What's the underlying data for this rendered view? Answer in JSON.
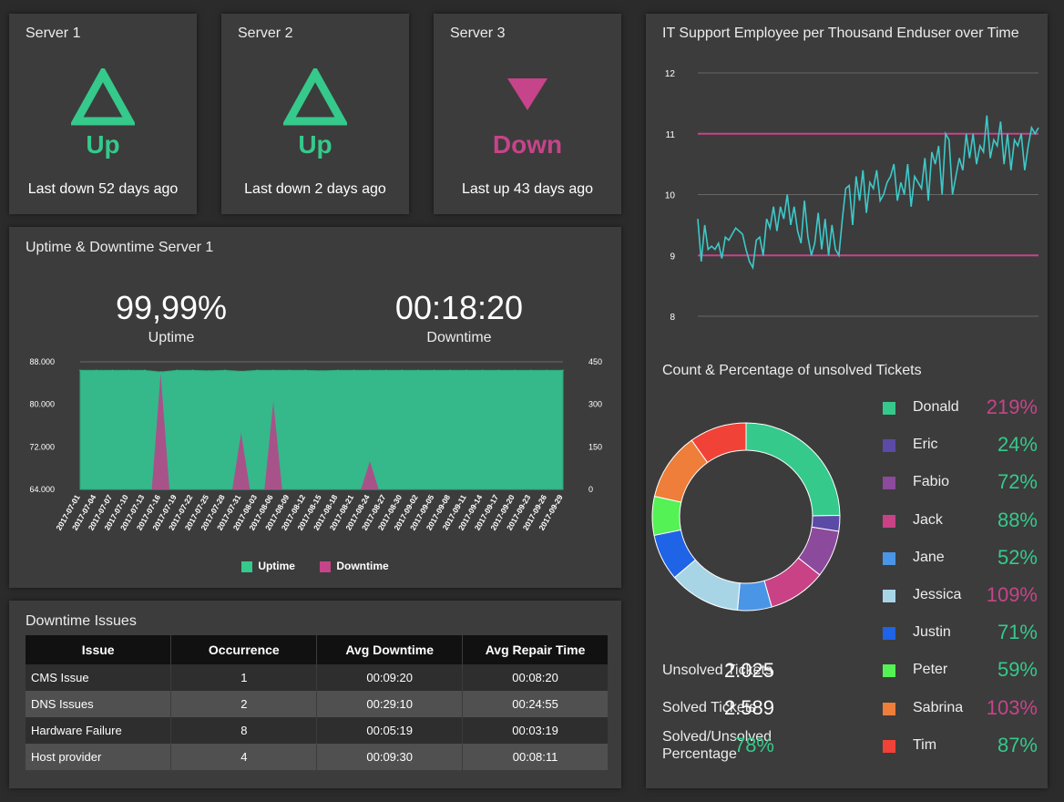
{
  "colors": {
    "up": "#35c98b",
    "down": "#c64489",
    "teal_line": "#3ec9c9",
    "panel": "#3c3c3c"
  },
  "servers": [
    {
      "title": "Server 1",
      "status": "Up",
      "note": "Last down 52 days ago",
      "icon": "triangle-up-icon"
    },
    {
      "title": "Server 2",
      "status": "Up",
      "note": "Last down 2 days ago",
      "icon": "triangle-up-icon"
    },
    {
      "title": "Server 3",
      "status": "Down",
      "note": "Last up 43 days ago",
      "icon": "triangle-down-icon"
    }
  ],
  "uptime_panel": {
    "title": "Uptime & Downtime Server 1",
    "uptime_value": "99,99%",
    "uptime_label": "Uptime",
    "downtime_value": "00:18:20",
    "downtime_label": "Downtime"
  },
  "issues_panel": {
    "title": "Downtime Issues",
    "headers": [
      "Issue",
      "Occurrence",
      "Avg Downtime",
      "Avg Repair Time"
    ],
    "rows": [
      [
        "CMS Issue",
        "1",
        "00:09:20",
        "00:08:20"
      ],
      [
        "DNS Issues",
        "2",
        "00:29:10",
        "00:24:55"
      ],
      [
        "Hardware Failure",
        "8",
        "00:05:19",
        "00:03:19"
      ],
      [
        "Host provider",
        "4",
        "00:09:30",
        "00:08:11"
      ]
    ]
  },
  "it_panel": {
    "title": "IT Support Employee per Thousand Enduser over Time"
  },
  "tickets_panel": {
    "title": "Count & Percentage of unsolved Tickets",
    "summary": [
      {
        "label": "Unsolved Tickets",
        "value": "2.025"
      },
      {
        "label": "Solved Tickets",
        "value": "2.589"
      },
      {
        "label": "Solved/Unsolved Percentage",
        "value": "78%"
      }
    ]
  },
  "chart_data": [
    {
      "type": "area",
      "title": "",
      "x": [
        "2017-07-01",
        "2017-07-04",
        "2017-07-07",
        "2017-07-10",
        "2017-07-13",
        "2017-07-16",
        "2017-07-19",
        "2017-07-22",
        "2017-07-25",
        "2017-07-28",
        "2017-07-31",
        "2017-08-03",
        "2017-08-06",
        "2017-08-09",
        "2017-08-12",
        "2017-08-15",
        "2017-08-18",
        "2017-08-21",
        "2017-08-24",
        "2017-08-27",
        "2017-08-30",
        "2017-09-02",
        "2017-09-05",
        "2017-09-08",
        "2017-09-11",
        "2017-09-14",
        "2017-09-17",
        "2017-09-20",
        "2017-09-23",
        "2017-09-26",
        "2017-09-29"
      ],
      "yleft_ticks": [
        "88.000",
        "80.000",
        "72.000",
        "64.000"
      ],
      "yright_ticks": [
        "450",
        "300",
        "150",
        "0"
      ],
      "yleft_lim": [
        64000,
        88000
      ],
      "yright_lim": [
        0,
        450
      ],
      "series": [
        {
          "name": "Uptime",
          "axis": "left",
          "color": "#35b98a",
          "values": [
            86400,
            86400,
            86400,
            86400,
            86400,
            86100,
            86400,
            86400,
            86300,
            86400,
            86200,
            86400,
            86400,
            86400,
            86400,
            86300,
            86400,
            86400,
            86400,
            86400,
            86400,
            86400,
            86400,
            86400,
            86400,
            86400,
            86400,
            86400,
            86400,
            86400,
            86400
          ]
        },
        {
          "name": "Downtime",
          "axis": "right",
          "color": "#b5478a",
          "values": [
            0,
            0,
            0,
            0,
            0,
            410,
            0,
            0,
            0,
            0,
            200,
            0,
            310,
            0,
            0,
            0,
            0,
            0,
            100,
            0,
            0,
            0,
            0,
            0,
            0,
            0,
            0,
            0,
            0,
            0,
            0
          ]
        }
      ],
      "legend": "bottom"
    },
    {
      "type": "line",
      "title": "IT Support Employee per Thousand Enduser over Time",
      "y_ticks": [
        "12",
        "11",
        "10",
        "9",
        "8"
      ],
      "ylim": [
        8,
        12
      ],
      "reference_lines": [
        11,
        9
      ],
      "series": [
        {
          "color": "#3ec9c9",
          "values": [
            9.6,
            8.9,
            9.5,
            9.1,
            9.15,
            9.1,
            9.2,
            8.95,
            9.3,
            9.25,
            9.35,
            9.45,
            9.4,
            9.35,
            9.1,
            8.9,
            8.8,
            9.25,
            9.3,
            9.0,
            9.6,
            9.45,
            9.8,
            9.4,
            9.8,
            9.6,
            10.0,
            9.5,
            9.8,
            9.4,
            9.2,
            9.9,
            9.3,
            9.0,
            9.2,
            9.7,
            9.1,
            9.6,
            9.0,
            9.5,
            9.1,
            9.0,
            9.6,
            10.1,
            10.15,
            9.5,
            10.3,
            9.9,
            10.4,
            9.7,
            10.2,
            10.1,
            10.4,
            9.9,
            10.0,
            10.2,
            10.3,
            10.5,
            9.9,
            10.2,
            10.0,
            10.5,
            9.8,
            10.3,
            10.2,
            10.1,
            10.6,
            9.9,
            10.7,
            10.5,
            10.8,
            10.0,
            11.0,
            10.9,
            10.0,
            10.3,
            10.6,
            10.4,
            11.0,
            10.6,
            11.0,
            10.5,
            10.8,
            10.7,
            11.3,
            10.6,
            10.9,
            10.8,
            11.2,
            10.5,
            11.0,
            10.4,
            10.9,
            10.8,
            11.0,
            10.4,
            10.8,
            11.1,
            11.0,
            11.1
          ]
        }
      ]
    },
    {
      "type": "pie",
      "title": "Count & Percentage of unsolved Tickets",
      "categories": [
        "Donald",
        "Eric",
        "Fabio",
        "Jack",
        "Jane",
        "Jessica",
        "Justin",
        "Peter",
        "Sabrina",
        "Tim"
      ],
      "labels": [
        "219%",
        "24%",
        "72%",
        "88%",
        "52%",
        "109%",
        "71%",
        "59%",
        "103%",
        "87%"
      ],
      "values": [
        219,
        24,
        72,
        88,
        52,
        109,
        71,
        59,
        103,
        87
      ],
      "colors": [
        "#35c98b",
        "#5b4aa6",
        "#8c4a9c",
        "#c94285",
        "#4a95e6",
        "#a8d5e6",
        "#1f63e6",
        "#54f254",
        "#ee7e3a",
        "#f14237"
      ],
      "label_colors": [
        "#c64489",
        "#35c98b",
        "#35c98b",
        "#35c98b",
        "#35c98b",
        "#c64489",
        "#35c98b",
        "#35c98b",
        "#c64489",
        "#35c98b"
      ]
    }
  ]
}
